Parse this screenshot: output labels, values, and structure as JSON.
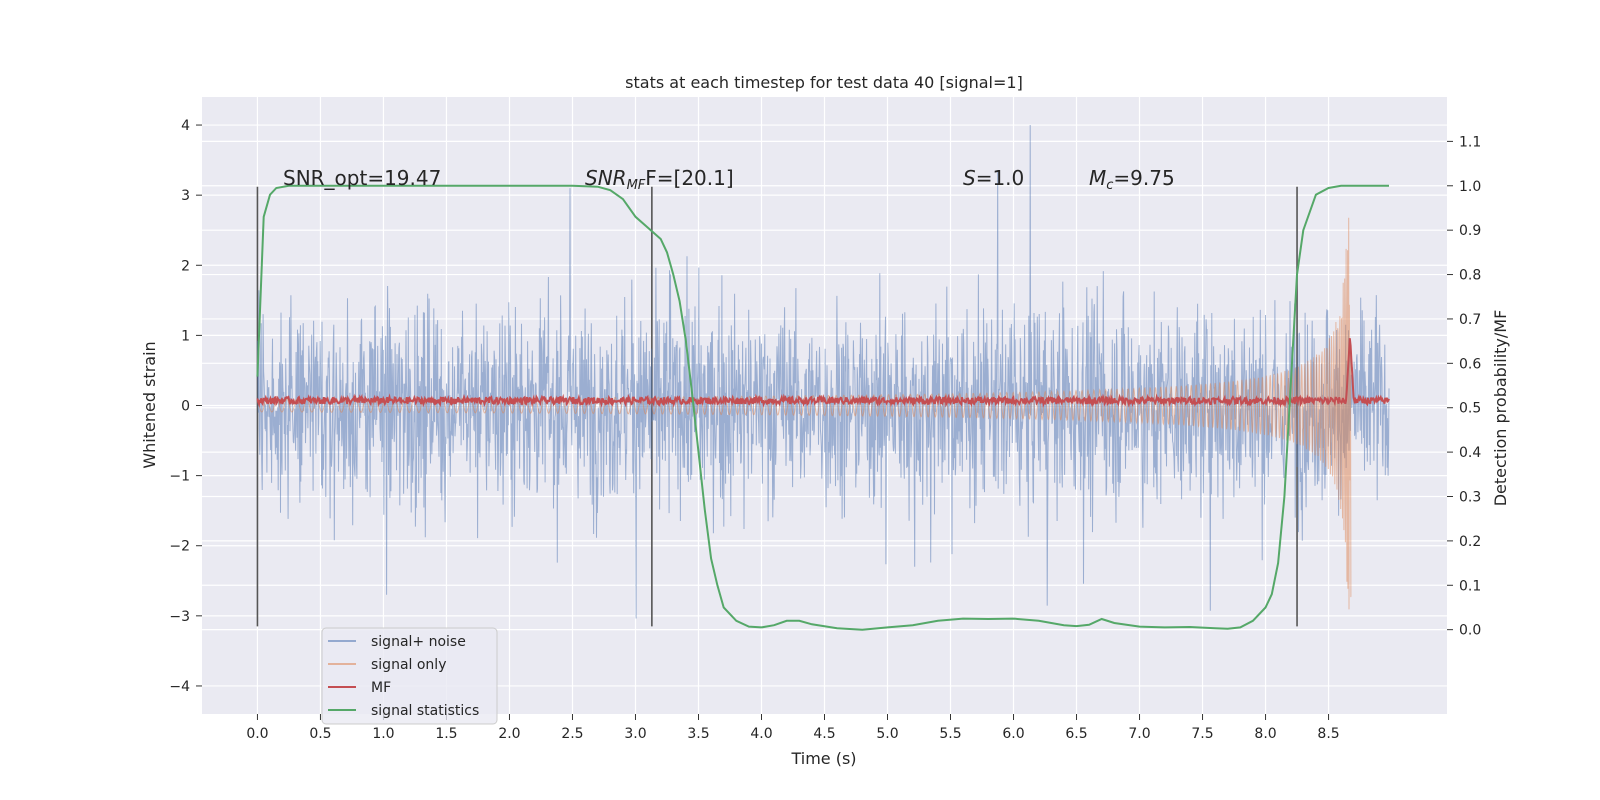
{
  "chart_data": {
    "type": "line",
    "title": "stats at each timestep for test data 40 [signal=1]",
    "xlabel": "Time (s)",
    "ylabel": "Whitened strain",
    "ylabel_right": "Detection probability/MF",
    "xlim": [
      -0.44,
      9.44
    ],
    "ylim": [
      -4.4,
      4.4
    ],
    "ylim_right": [
      -0.19,
      1.2
    ],
    "x_ticks": [
      0.0,
      0.5,
      1.0,
      1.5,
      2.0,
      2.5,
      3.0,
      3.5,
      4.0,
      4.5,
      5.0,
      5.5,
      6.0,
      6.5,
      7.0,
      7.5,
      8.0,
      8.5
    ],
    "x_tick_labels": [
      "0.0",
      "0.5",
      "1.0",
      "1.5",
      "2.0",
      "2.5",
      "3.0",
      "3.5",
      "4.0",
      "4.5",
      "5.0",
      "5.5",
      "6.0",
      "6.5",
      "7.0",
      "7.5",
      "8.0",
      "8.5"
    ],
    "y_ticks": [
      4,
      3,
      2,
      1,
      0,
      -1,
      -2,
      -3,
      -4
    ],
    "y_tick_labels": [
      "4",
      "3",
      "2",
      "1",
      "0",
      "−1",
      "−2",
      "−3",
      "−4"
    ],
    "y_right_ticks": [
      1.1,
      1.0,
      0.9,
      0.8,
      0.7,
      0.6,
      0.5,
      0.4,
      0.3,
      0.2,
      0.1,
      0.0
    ],
    "y_right_tick_labels": [
      "1.1",
      "1.0",
      "0.9",
      "0.8",
      "0.7",
      "0.6",
      "0.5",
      "0.4",
      "0.3",
      "0.2",
      "0.1",
      "0.0"
    ],
    "grid": true,
    "legend_position": "lower-left",
    "series": [
      {
        "name": "signal+ noise",
        "color": "#4c72b0",
        "axis": "left",
        "kind": "noise",
        "x_range": [
          0.0,
          8.98
        ],
        "amplitude": 1.0,
        "peak_extent": 4.0
      },
      {
        "name": "signal only",
        "color": "#dd8452",
        "axis": "left",
        "kind": "chirp",
        "x_range": [
          0.0,
          8.68
        ],
        "peak_amplitude": 3.1
      },
      {
        "name": "MF",
        "color": "#c44e52",
        "axis": "left",
        "kind": "mf",
        "baseline": 0.07,
        "peak_x": 8.67,
        "peak_value": 1.0
      },
      {
        "name": "signal statistics",
        "color": "#55a868",
        "axis": "right",
        "x": [
          0.0,
          0.05,
          0.1,
          0.15,
          0.25,
          0.5,
          1.0,
          1.5,
          2.0,
          2.5,
          2.7,
          2.8,
          2.9,
          3.0,
          3.1,
          3.2,
          3.25,
          3.3,
          3.35,
          3.4,
          3.45,
          3.5,
          3.55,
          3.6,
          3.65,
          3.7,
          3.8,
          3.9,
          4.0,
          4.1,
          4.2,
          4.3,
          4.4,
          4.6,
          4.8,
          5.0,
          5.2,
          5.4,
          5.6,
          5.8,
          6.0,
          6.2,
          6.4,
          6.5,
          6.6,
          6.7,
          6.8,
          7.0,
          7.2,
          7.4,
          7.6,
          7.7,
          7.8,
          7.9,
          8.0,
          8.05,
          8.1,
          8.15,
          8.2,
          8.25,
          8.3,
          8.4,
          8.5,
          8.6,
          8.7,
          8.8,
          8.9,
          8.98
        ],
        "values": [
          0.57,
          0.93,
          0.98,
          0.995,
          1.0,
          1.0,
          1.0,
          1.0,
          1.0,
          1.0,
          0.998,
          0.99,
          0.97,
          0.93,
          0.905,
          0.88,
          0.85,
          0.8,
          0.74,
          0.65,
          0.53,
          0.4,
          0.27,
          0.16,
          0.1,
          0.05,
          0.02,
          0.007,
          0.005,
          0.01,
          0.02,
          0.02,
          0.012,
          0.003,
          0.0,
          0.005,
          0.01,
          0.02,
          0.025,
          0.024,
          0.025,
          0.02,
          0.01,
          0.008,
          0.011,
          0.024,
          0.015,
          0.007,
          0.005,
          0.006,
          0.003,
          0.002,
          0.005,
          0.02,
          0.05,
          0.08,
          0.15,
          0.3,
          0.55,
          0.8,
          0.9,
          0.98,
          0.995,
          1.0,
          1.0,
          1.0,
          1.0,
          1.0
        ]
      }
    ],
    "vertical_lines": [
      0.0,
      3.13,
      8.25
    ],
    "annotations": [
      {
        "x": 0.2,
        "text_plain": "SNR_opt=19.47"
      },
      {
        "x": 2.6,
        "text_main": "SNR",
        "text_sub": "MF",
        "text_tail": "F=[20.1]"
      },
      {
        "x": 5.6,
        "text_main": "S",
        "text_tail": "=1.0"
      },
      {
        "x": 6.6,
        "text_main": "M",
        "text_sub": "c",
        "text_tail": "=9.75"
      }
    ]
  }
}
